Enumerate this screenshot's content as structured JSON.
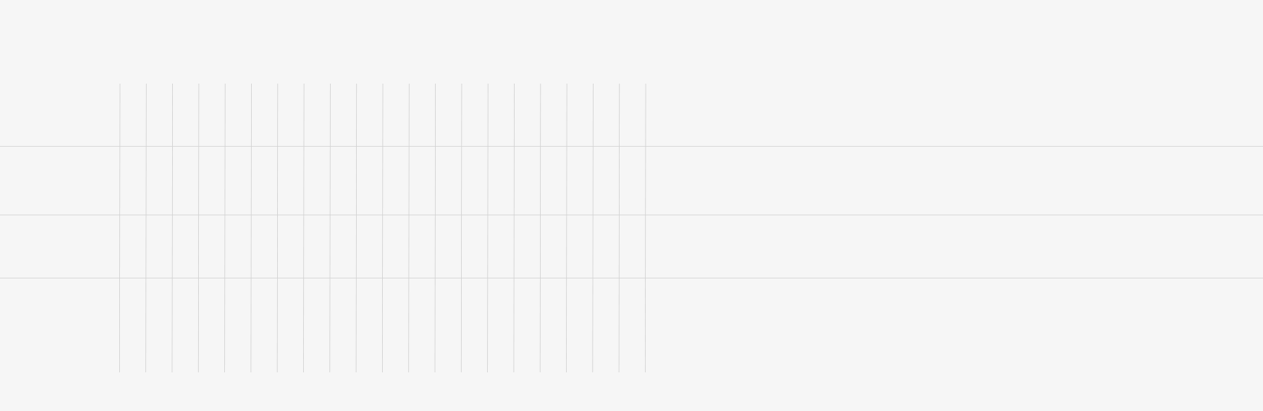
{
  "colors": {
    "background": "#f6f6f6",
    "grid_line": "#d2d2d2"
  },
  "vertical_grid_line_count": 21,
  "horizontal_grid_line_count": 3
}
